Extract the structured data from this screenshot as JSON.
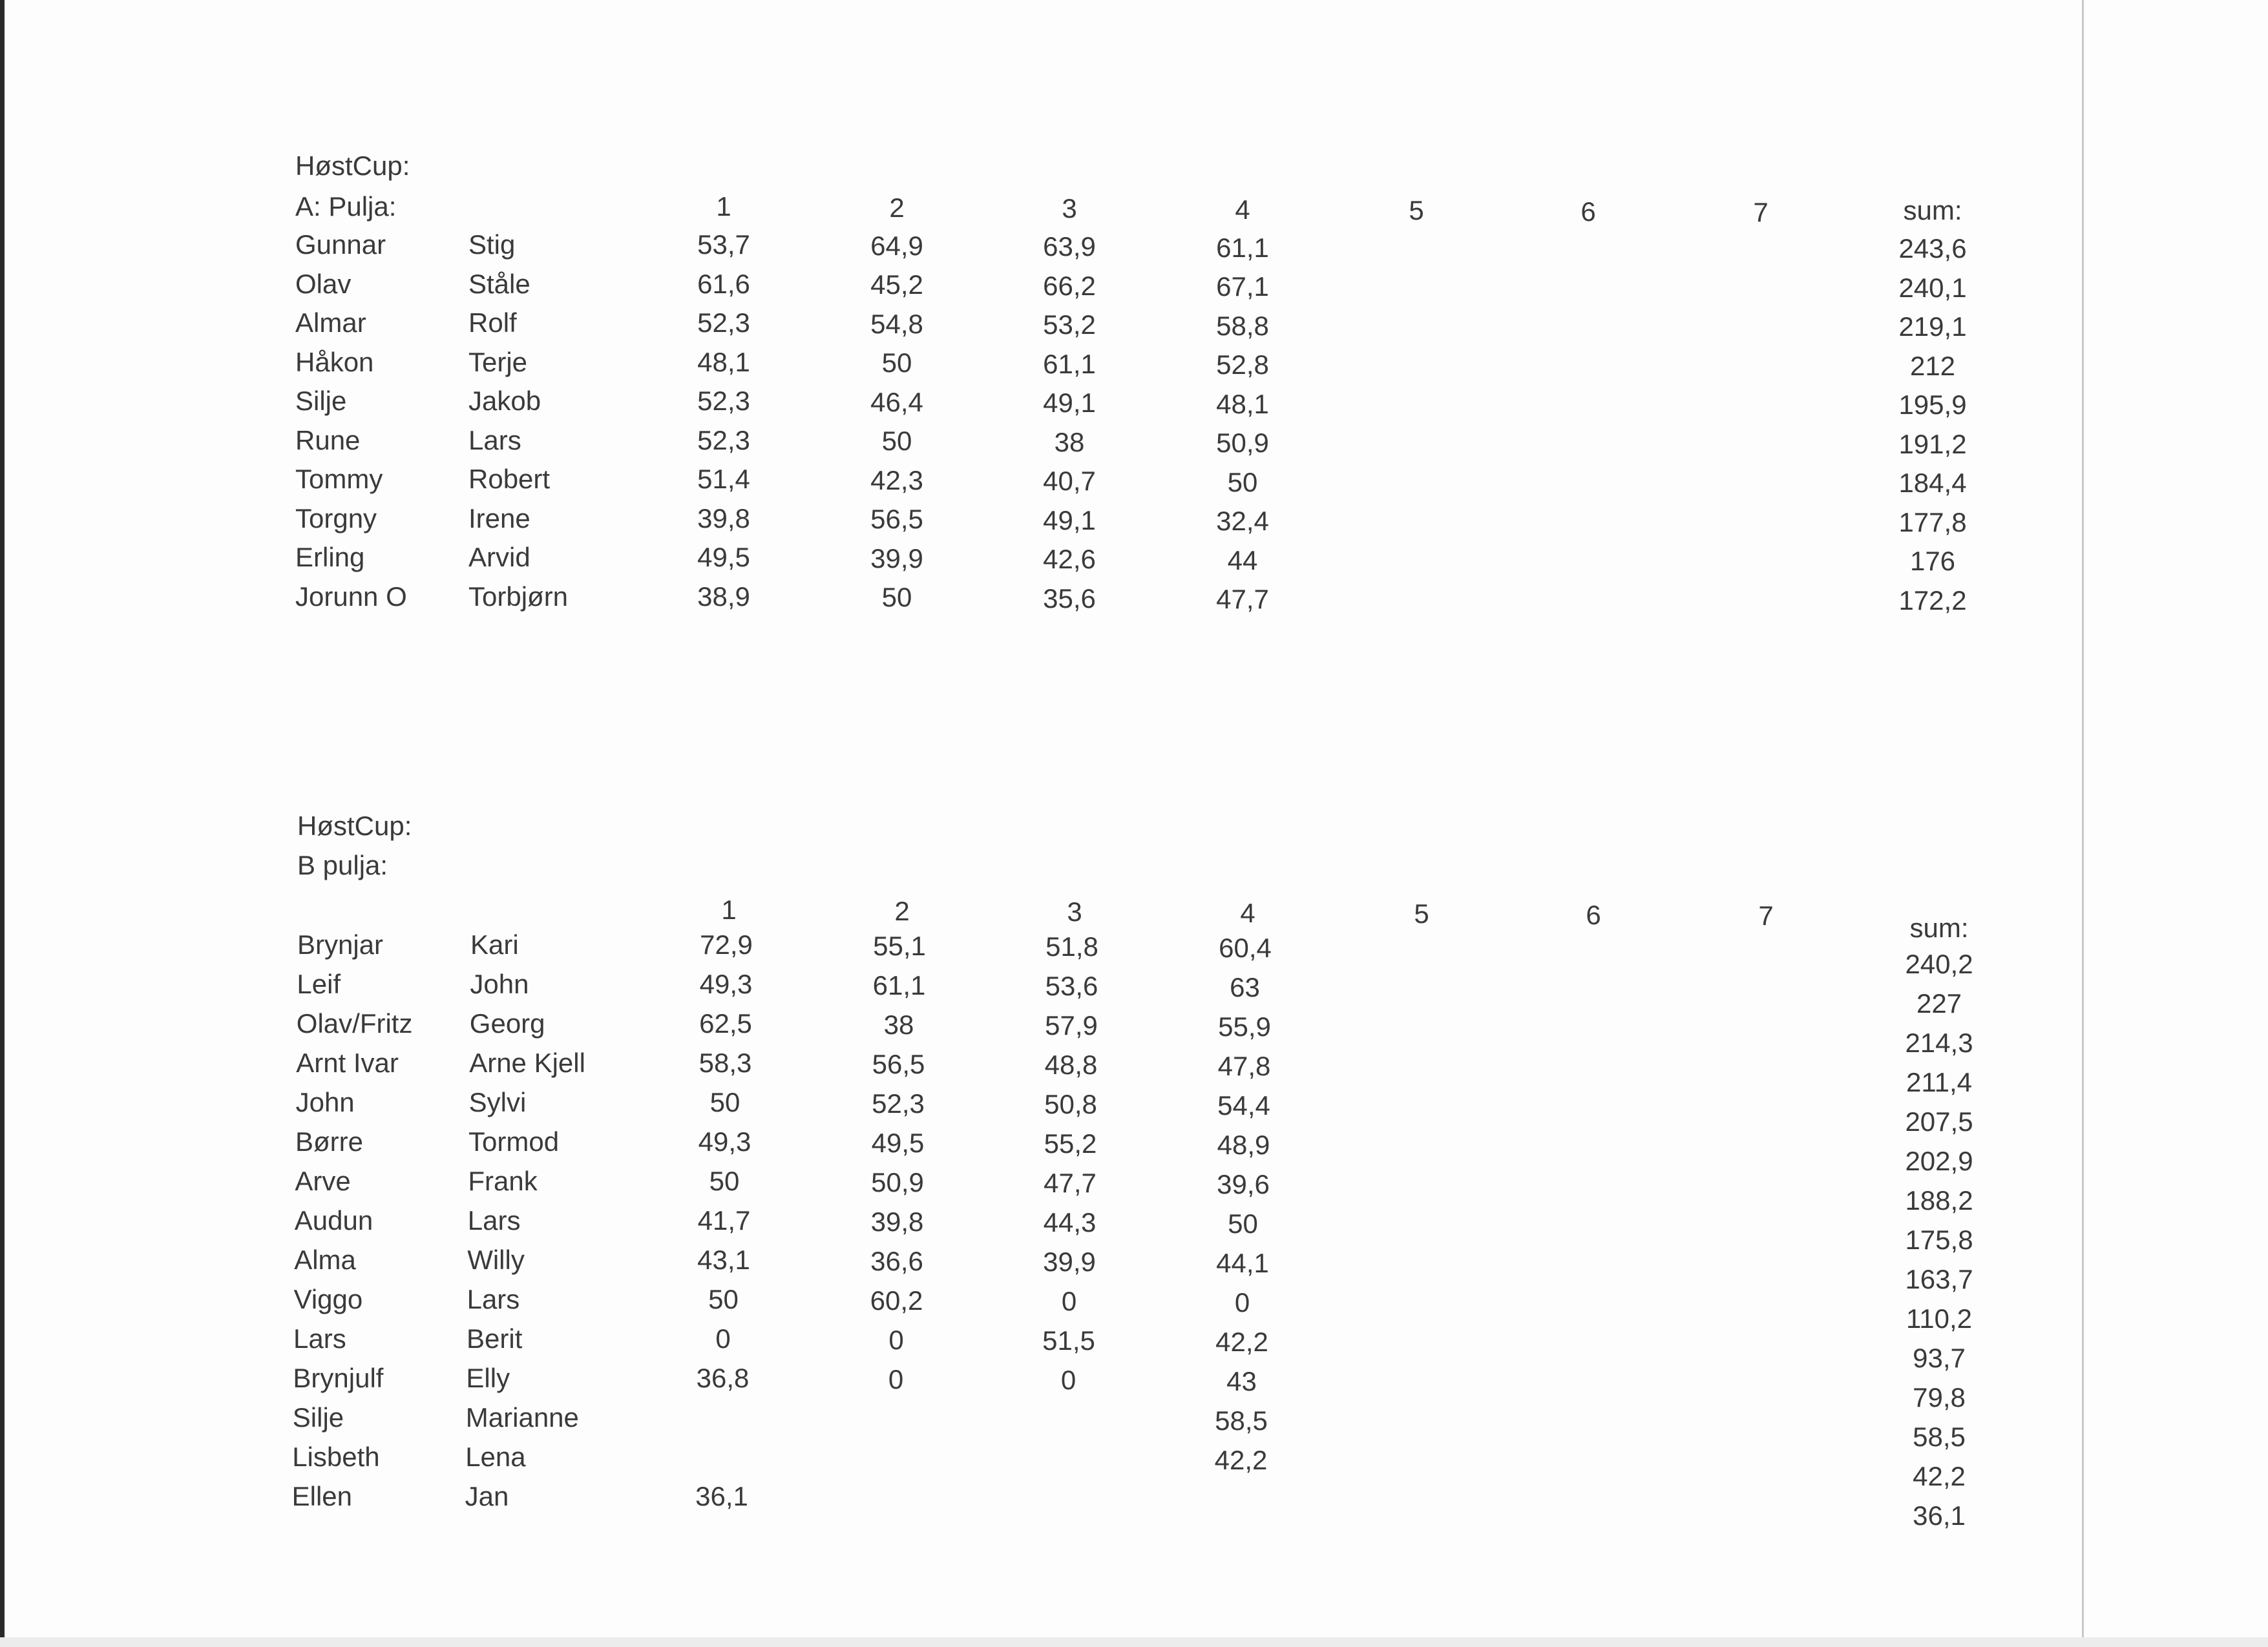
{
  "sections": [
    {
      "title": "HøstCup:",
      "pool": "A: Pulja:",
      "round_headers": [
        "1",
        "2",
        "3",
        "4",
        "5",
        "6",
        "7"
      ],
      "sum_header": "sum:",
      "rows": [
        {
          "p1": "Gunnar",
          "p2": "Stig",
          "scores": [
            "53,7",
            "64,9",
            "63,9",
            "61,1"
          ],
          "sum": "243,6"
        },
        {
          "p1": "Olav",
          "p2": "Ståle",
          "scores": [
            "61,6",
            "45,2",
            "66,2",
            "67,1"
          ],
          "sum": "240,1"
        },
        {
          "p1": "Almar",
          "p2": "Rolf",
          "scores": [
            "52,3",
            "54,8",
            "53,2",
            "58,8"
          ],
          "sum": "219,1"
        },
        {
          "p1": "Håkon",
          "p2": "Terje",
          "scores": [
            "48,1",
            "50",
            "61,1",
            "52,8"
          ],
          "sum": "212"
        },
        {
          "p1": "Silje",
          "p2": "Jakob",
          "scores": [
            "52,3",
            "46,4",
            "49,1",
            "48,1"
          ],
          "sum": "195,9"
        },
        {
          "p1": "Rune",
          "p2": "Lars",
          "scores": [
            "52,3",
            "50",
            "38",
            "50,9"
          ],
          "sum": "191,2"
        },
        {
          "p1": "Tommy",
          "p2": "Robert",
          "scores": [
            "51,4",
            "42,3",
            "40,7",
            "50"
          ],
          "sum": "184,4"
        },
        {
          "p1": "Torgny",
          "p2": "Irene",
          "scores": [
            "39,8",
            "56,5",
            "49,1",
            "32,4"
          ],
          "sum": "177,8"
        },
        {
          "p1": "Erling",
          "p2": "Arvid",
          "scores": [
            "49,5",
            "39,9",
            "42,6",
            "44"
          ],
          "sum": "176"
        },
        {
          "p1": "Jorunn O",
          "p2": "Torbjørn",
          "scores": [
            "38,9",
            "50",
            "35,6",
            "47,7"
          ],
          "sum": "172,2"
        }
      ]
    },
    {
      "title": "HøstCup:",
      "pool": "B pulja:",
      "round_headers": [
        "1",
        "2",
        "3",
        "4",
        "5",
        "6",
        "7"
      ],
      "sum_header": "sum:",
      "rows": [
        {
          "p1": "Brynjar",
          "p2": "Kari",
          "scores": [
            "72,9",
            "55,1",
            "51,8",
            "60,4"
          ],
          "sum": "240,2"
        },
        {
          "p1": "Leif",
          "p2": "John",
          "scores": [
            "49,3",
            "61,1",
            "53,6",
            "63"
          ],
          "sum": "227"
        },
        {
          "p1": "Olav/Fritz",
          "p2": "Georg",
          "scores": [
            "62,5",
            "38",
            "57,9",
            "55,9"
          ],
          "sum": "214,3"
        },
        {
          "p1": "Arnt Ivar",
          "p2": "Arne Kjell",
          "scores": [
            "58,3",
            "56,5",
            "48,8",
            "47,8"
          ],
          "sum": "211,4"
        },
        {
          "p1": "John",
          "p2": "Sylvi",
          "scores": [
            "50",
            "52,3",
            "50,8",
            "54,4"
          ],
          "sum": "207,5"
        },
        {
          "p1": "Børre",
          "p2": "Tormod",
          "scores": [
            "49,3",
            "49,5",
            "55,2",
            "48,9"
          ],
          "sum": "202,9"
        },
        {
          "p1": "Arve",
          "p2": "Frank",
          "scores": [
            "50",
            "50,9",
            "47,7",
            "39,6"
          ],
          "sum": "188,2"
        },
        {
          "p1": "Audun",
          "p2": "Lars",
          "scores": [
            "41,7",
            "39,8",
            "44,3",
            "50"
          ],
          "sum": "175,8"
        },
        {
          "p1": "Alma",
          "p2": "Willy",
          "scores": [
            "43,1",
            "36,6",
            "39,9",
            "44,1"
          ],
          "sum": "163,7"
        },
        {
          "p1": "Viggo",
          "p2": "Lars",
          "scores": [
            "50",
            "60,2",
            "0",
            "0"
          ],
          "sum": "110,2"
        },
        {
          "p1": "Lars",
          "p2": "Berit",
          "scores": [
            "0",
            "0",
            "51,5",
            "42,2"
          ],
          "sum": "93,7"
        },
        {
          "p1": "Brynjulf",
          "p2": "Elly",
          "scores": [
            "36,8",
            "0",
            "0",
            "43"
          ],
          "sum": "79,8"
        },
        {
          "p1": "Silje",
          "p2": "Marianne",
          "scores": [
            "",
            "",
            "",
            "58,5"
          ],
          "sum": "58,5"
        },
        {
          "p1": "Lisbeth",
          "p2": "Lena",
          "scores": [
            "",
            "",
            "",
            "42,2"
          ],
          "sum": "42,2"
        },
        {
          "p1": "Ellen",
          "p2": "Jan",
          "scores": [
            "36,1",
            "",
            "",
            ""
          ],
          "sum": "36,1"
        }
      ]
    }
  ]
}
